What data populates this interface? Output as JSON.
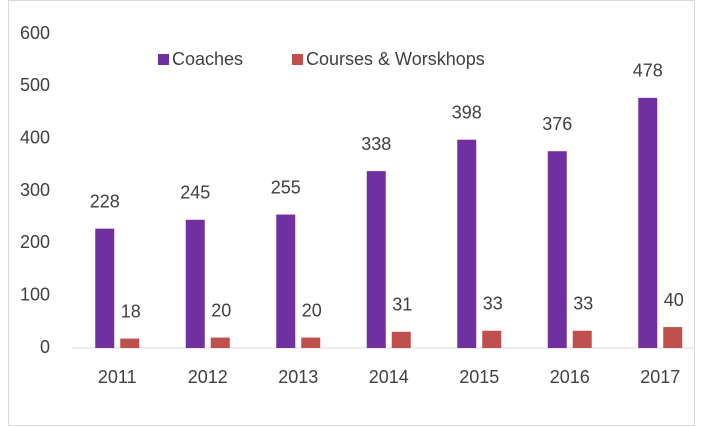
{
  "chart_data": {
    "type": "bar",
    "categories": [
      "2011",
      "2012",
      "2013",
      "2014",
      "2015",
      "2016",
      "2017"
    ],
    "series": [
      {
        "name": "Coaches",
        "color": "#7030a0",
        "values": [
          228,
          245,
          255,
          338,
          398,
          376,
          478
        ]
      },
      {
        "name": "Courses & Worskhops",
        "color": "#c0504d",
        "values": [
          18,
          20,
          20,
          31,
          33,
          33,
          40
        ]
      }
    ],
    "ylim": [
      0,
      600
    ],
    "yticks": [
      0,
      100,
      200,
      300,
      400,
      500,
      600
    ],
    "grid": false,
    "legend": "top"
  }
}
